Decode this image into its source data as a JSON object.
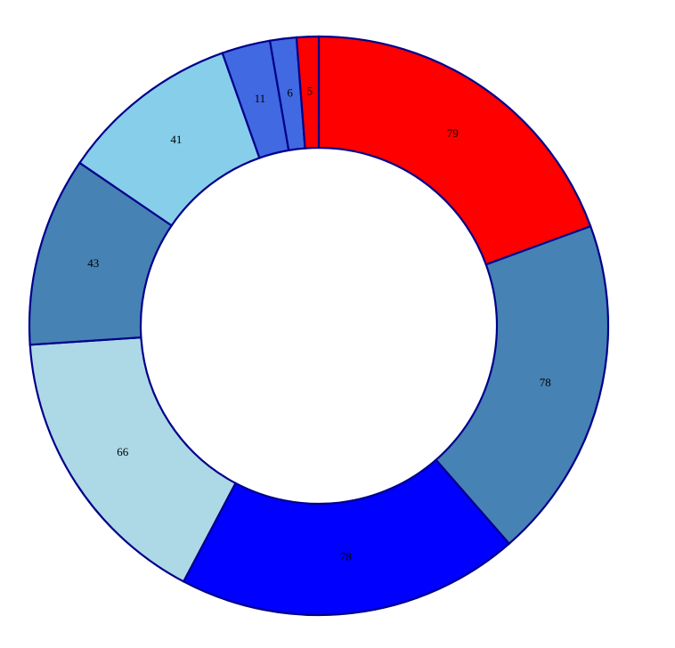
{
  "chart_data": {
    "type": "pie",
    "variant": "donut",
    "values": [
      79,
      78,
      78,
      66,
      43,
      41,
      11,
      6,
      5
    ],
    "labels": [
      "79",
      "78",
      "78",
      "66",
      "43",
      "41",
      "11",
      "6",
      "5"
    ],
    "colors": [
      "#ff0000",
      "#4682b4",
      "#0000ff",
      "#add8e6",
      "#4682b4",
      "#87ceeb",
      "#4169e1",
      "#4169e1",
      "#ff0000"
    ],
    "title": "",
    "legend": "none"
  },
  "style": {
    "stroke_color": "#00008b",
    "background": "#ffffff"
  }
}
